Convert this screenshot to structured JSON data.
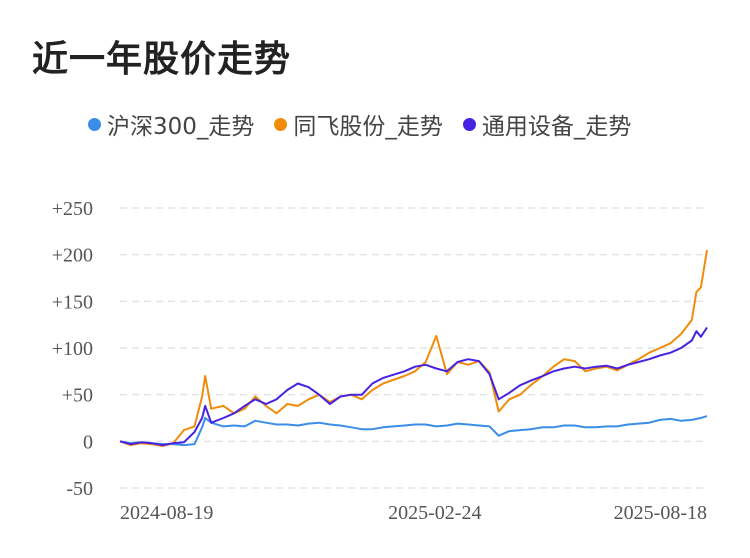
{
  "title": "近一年股价走势",
  "chart_data": {
    "type": "line",
    "title": "近一年股价走势",
    "xlabel": "",
    "ylabel": "",
    "ylim": [
      -50,
      250
    ],
    "yticks": [
      {
        "value": 250,
        "label": "+250"
      },
      {
        "value": 200,
        "label": "+200"
      },
      {
        "value": 150,
        "label": "+150"
      },
      {
        "value": 100,
        "label": "+100"
      },
      {
        "value": 50,
        "label": "+50"
      },
      {
        "value": 0,
        "label": "0"
      },
      {
        "value": -50,
        "label": "-50"
      }
    ],
    "xticks": [
      {
        "value": "2024-08-19",
        "label": "2024-08-19"
      },
      {
        "value": "2025-02-24",
        "label": "2025-02-24"
      },
      {
        "value": "2025-08-18",
        "label": "2025-08-18"
      }
    ],
    "x": [
      "2024-08-01",
      "2024-08-08",
      "2024-08-15",
      "2024-08-22",
      "2024-08-29",
      "2024-09-05",
      "2024-09-12",
      "2024-09-19",
      "2024-09-24",
      "2024-09-26",
      "2024-09-30",
      "2024-10-08",
      "2024-10-15",
      "2024-10-22",
      "2024-10-29",
      "2024-11-05",
      "2024-11-12",
      "2024-11-19",
      "2024-11-26",
      "2024-12-03",
      "2024-12-10",
      "2024-12-17",
      "2024-12-24",
      "2024-12-31",
      "2025-01-07",
      "2025-01-14",
      "2025-01-21",
      "2025-02-04",
      "2025-02-11",
      "2025-02-18",
      "2025-02-25",
      "2025-03-04",
      "2025-03-11",
      "2025-03-18",
      "2025-03-25",
      "2025-04-01",
      "2025-04-07",
      "2025-04-14",
      "2025-04-21",
      "2025-04-28",
      "2025-05-06",
      "2025-05-13",
      "2025-05-20",
      "2025-05-27",
      "2025-06-03",
      "2025-06-10",
      "2025-06-17",
      "2025-06-24",
      "2025-07-01",
      "2025-07-08",
      "2025-07-15",
      "2025-07-22",
      "2025-07-29",
      "2025-08-05",
      "2025-08-12",
      "2025-08-15",
      "2025-08-18",
      "2025-08-22"
    ],
    "series": [
      {
        "name": "沪深300_走势",
        "color": "#3b8ee8",
        "values": [
          0,
          -2,
          -1,
          -2,
          -3,
          -3,
          -4,
          -3,
          15,
          25,
          20,
          16,
          17,
          16,
          22,
          20,
          18,
          18,
          17,
          19,
          20,
          18,
          17,
          15,
          13,
          13,
          15,
          17,
          18,
          18,
          16,
          17,
          19,
          18,
          17,
          16,
          6,
          11,
          12,
          13,
          15,
          15,
          17,
          17,
          15,
          15,
          16,
          16,
          18,
          19,
          20,
          23,
          24,
          22,
          23,
          24,
          25,
          27
        ]
      },
      {
        "name": "同飞股份_走势",
        "color": "#f08c0a",
        "values": [
          0,
          -4,
          -2,
          -3,
          -5,
          -2,
          12,
          16,
          48,
          70,
          35,
          38,
          30,
          35,
          48,
          38,
          30,
          40,
          38,
          45,
          50,
          42,
          48,
          50,
          45,
          55,
          62,
          70,
          75,
          85,
          113,
          72,
          85,
          82,
          86,
          74,
          32,
          45,
          50,
          60,
          70,
          80,
          88,
          86,
          75,
          78,
          80,
          76,
          82,
          88,
          95,
          100,
          105,
          115,
          130,
          160,
          165,
          205
        ]
      },
      {
        "name": "通用设备_走势",
        "color": "#4722e2",
        "values": [
          0,
          -3,
          -1,
          -2,
          -4,
          -2,
          -1,
          10,
          25,
          38,
          20,
          25,
          30,
          38,
          45,
          40,
          45,
          55,
          62,
          58,
          50,
          40,
          48,
          50,
          50,
          62,
          68,
          75,
          80,
          82,
          78,
          75,
          85,
          88,
          86,
          72,
          45,
          52,
          60,
          65,
          70,
          75,
          78,
          80,
          78,
          80,
          81,
          78,
          82,
          85,
          88,
          92,
          95,
          100,
          108,
          118,
          112,
          122
        ]
      }
    ]
  }
}
